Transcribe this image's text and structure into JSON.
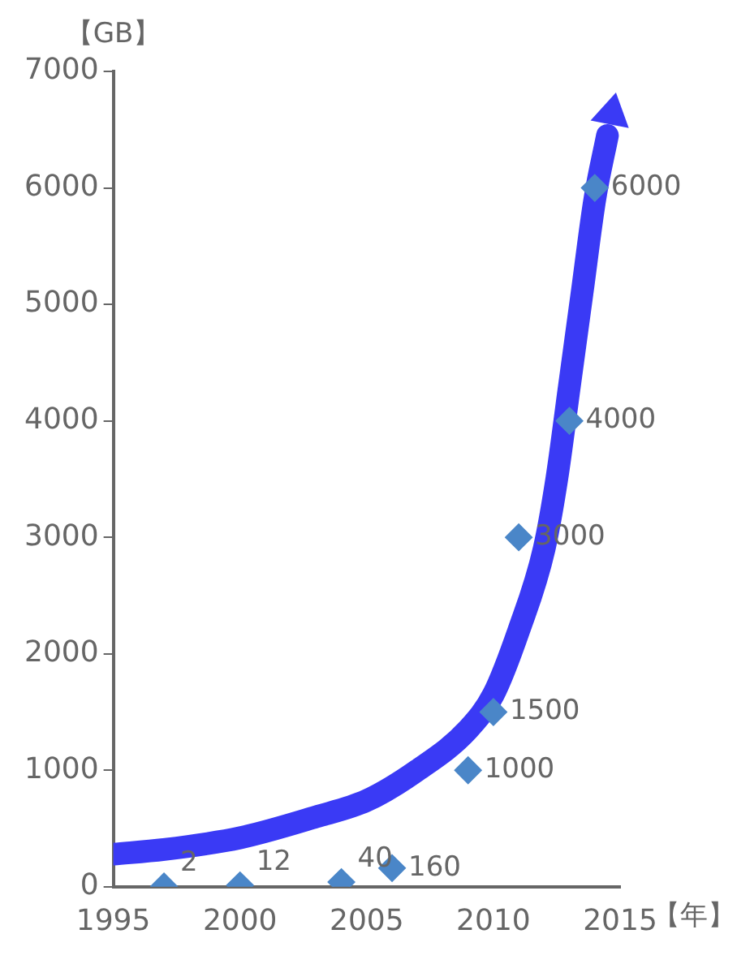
{
  "chart_data": {
    "type": "scatter",
    "ylabel": "【GB】",
    "xlabel": "【年】",
    "x": [
      1997,
      2000,
      2004,
      2006,
      2009,
      2010,
      2011,
      2013,
      2014
    ],
    "series": [
      {
        "type": "scatter",
        "color": "#4a86c8",
        "marker": "diamond",
        "values": [
          2,
          12,
          40,
          160,
          1000,
          1500,
          3000,
          4000,
          6000
        ],
        "value_labels": [
          "2",
          "12",
          "40",
          "160",
          "1000",
          "1500",
          "3000",
          "4000",
          "6000"
        ]
      },
      {
        "type": "line",
        "color": "#3a3af5",
        "marker": "none",
        "x": [
          1995,
          1997,
          2000,
          2003,
          2005,
          2007,
          2009,
          2010,
          2011,
          2012,
          2012.5,
          2013,
          2013.5,
          2014,
          2014.5
        ],
        "values": [
          280,
          320,
          420,
          600,
          740,
          1000,
          1350,
          1650,
          2200,
          2900,
          3500,
          4300,
          5100,
          5900,
          6450
        ]
      }
    ],
    "xlim": [
      1995,
      2015
    ],
    "xticks": [
      1995,
      2000,
      2005,
      2010,
      2015
    ],
    "ylim": [
      0,
      7000
    ],
    "yticks": [
      0,
      1000,
      2000,
      3000,
      4000,
      5000,
      6000,
      7000
    ]
  }
}
